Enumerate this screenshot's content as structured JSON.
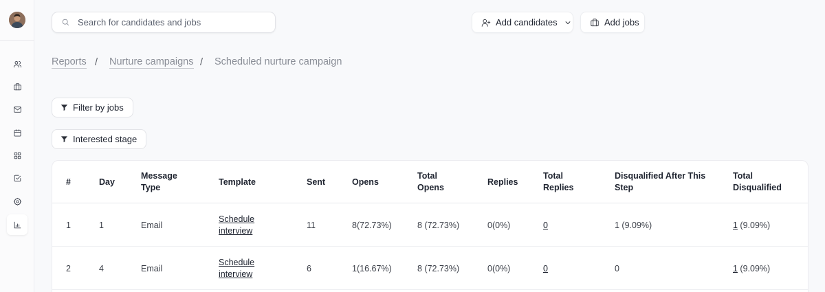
{
  "sidebar": {
    "items": [
      {
        "name": "candidates",
        "icon": "users-icon"
      },
      {
        "name": "jobs",
        "icon": "briefcase-icon"
      },
      {
        "name": "messages",
        "icon": "mail-icon"
      },
      {
        "name": "calendar",
        "icon": "calendar-icon"
      },
      {
        "name": "apps",
        "icon": "grid-icon"
      },
      {
        "name": "tasks",
        "icon": "checkbox-icon"
      },
      {
        "name": "settings",
        "icon": "gear-icon"
      },
      {
        "name": "reports",
        "icon": "chart-icon",
        "active": true
      }
    ]
  },
  "search": {
    "placeholder": "Search for candidates and jobs"
  },
  "header": {
    "add_candidates_label": "Add candidates",
    "add_jobs_label": "Add jobs"
  },
  "breadcrumb": {
    "item1": "Reports",
    "item2": "Nurture campaigns",
    "item3": "Scheduled nurture campaign",
    "separator": "/"
  },
  "filters": {
    "jobs_label": "Filter by jobs",
    "stage_label": "Interested stage"
  },
  "table": {
    "columns": {
      "num": "#",
      "day": "Day",
      "message_type_1": "Message",
      "message_type_2": "Type",
      "template": "Template",
      "sent": "Sent",
      "opens": "Opens",
      "total_opens_1": "Total",
      "total_opens_2": "Opens",
      "replies": "Replies",
      "total_replies_1": "Total",
      "total_replies_2": "Replies",
      "disq_after_1": "Disqualified After This",
      "disq_after_2": "Step",
      "total_disq_1": "Total",
      "total_disq_2": "Disqualified"
    },
    "rows": [
      {
        "num": "1",
        "day": "1",
        "type": "Email",
        "template_1": "Schedule",
        "template_2": "interview",
        "sent": "11",
        "opens": "8(72.73%)",
        "total_opens": "8 (72.73%)",
        "replies": "0(0%)",
        "total_replies": "0",
        "disq_after": "1 (9.09%)",
        "total_disq_count": "1",
        "total_disq_pct": " (9.09%)"
      },
      {
        "num": "2",
        "day": "4",
        "type": "Email",
        "template_1": "Schedule",
        "template_2": "interview",
        "sent": "6",
        "opens": "1(16.67%)",
        "total_opens": "8 (72.73%)",
        "replies": "0(0%)",
        "total_replies": "0",
        "disq_after": "0",
        "total_disq_count": "1",
        "total_disq_pct": " (9.09%)"
      }
    ]
  }
}
